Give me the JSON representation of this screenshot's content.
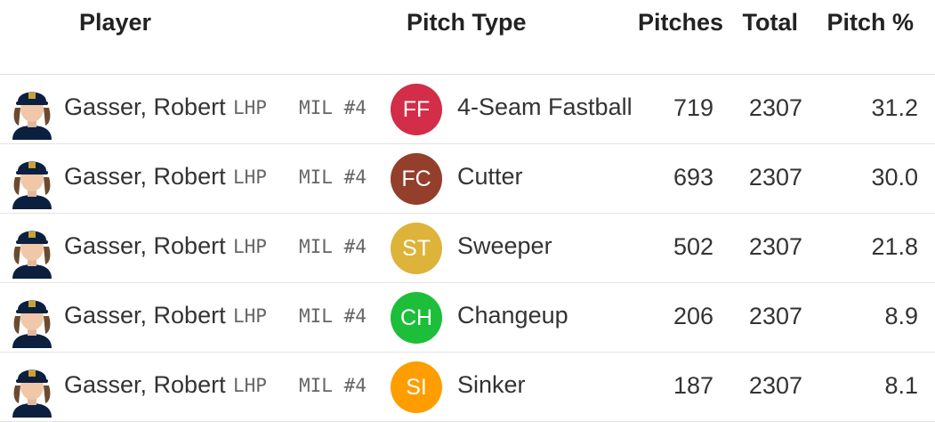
{
  "headers": {
    "player": "Player",
    "pitch_type": "Pitch Type",
    "pitches": "Pitches",
    "total": "Total",
    "pitch_pct": "Pitch %"
  },
  "rows": [
    {
      "player": "Gasser, Robert",
      "hand": "LHP",
      "team": "MIL #4",
      "code": "FF",
      "pitch": "4-Seam Fastball",
      "pitches": "719",
      "total": "2307",
      "pct": "31.2",
      "color": "#d22d49"
    },
    {
      "player": "Gasser, Robert",
      "hand": "LHP",
      "team": "MIL #4",
      "code": "FC",
      "pitch": "Cutter",
      "pitches": "693",
      "total": "2307",
      "pct": "30.0",
      "color": "#933f2c"
    },
    {
      "player": "Gasser, Robert",
      "hand": "LHP",
      "team": "MIL #4",
      "code": "ST",
      "pitch": "Sweeper",
      "pitches": "502",
      "total": "2307",
      "pct": "21.8",
      "color": "#ddb33a"
    },
    {
      "player": "Gasser, Robert",
      "hand": "LHP",
      "team": "MIL #4",
      "code": "CH",
      "pitch": "Changeup",
      "pitches": "206",
      "total": "2307",
      "pct": "8.9",
      "color": "#1dbe3a"
    },
    {
      "player": "Gasser, Robert",
      "hand": "LHP",
      "team": "MIL #4",
      "code": "SI",
      "pitch": "Sinker",
      "pitches": "187",
      "total": "2307",
      "pct": "8.1",
      "color": "#fe9d00"
    }
  ]
}
